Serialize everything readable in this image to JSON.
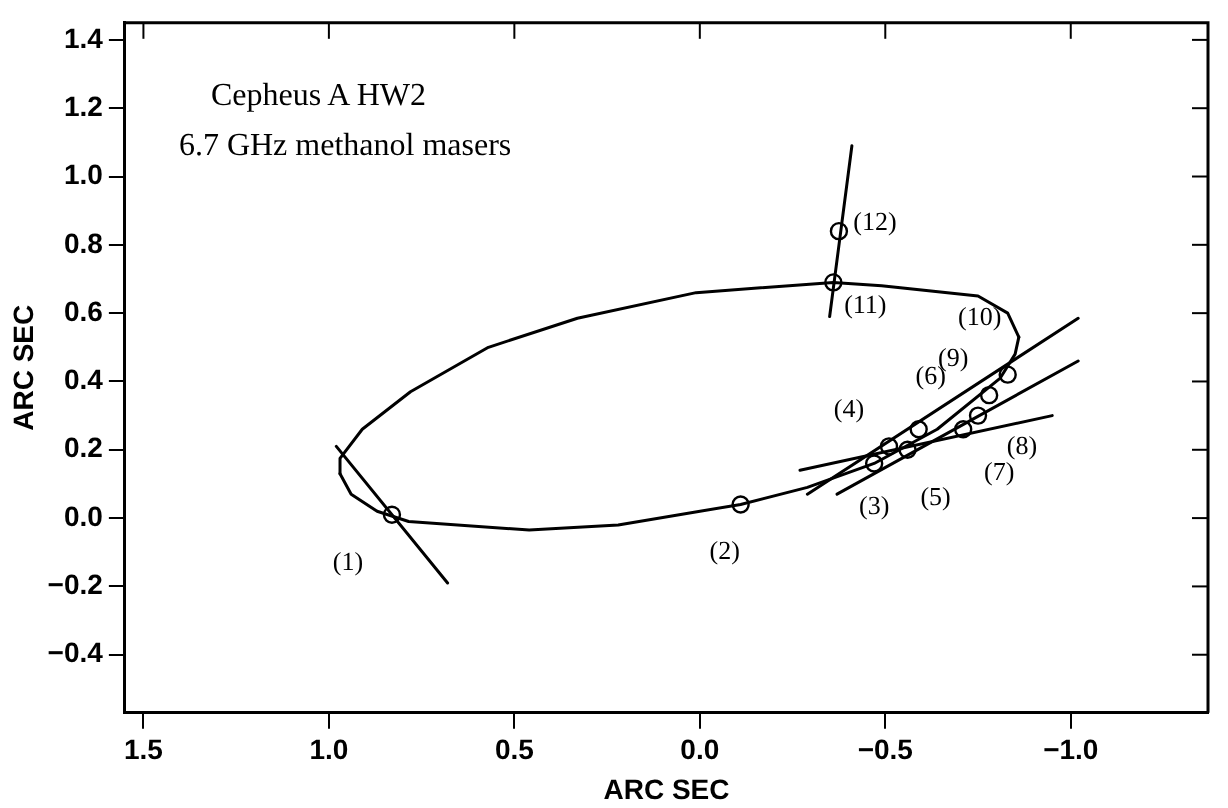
{
  "chart_data": {
    "type": "scatter",
    "title": "Cepheus A HW2",
    "subtitle": "6.7 GHz methanol masers",
    "xlabel": "ARC SEC",
    "ylabel": "ARC SEC",
    "xlim": [
      1.55,
      -1.37
    ],
    "ylim": [
      -0.57,
      1.45
    ],
    "xticks": [
      {
        "value": 1.5,
        "label": "1.5"
      },
      {
        "value": 1,
        "label": "1.0"
      },
      {
        "value": 0.5,
        "label": "0.5"
      },
      {
        "value": 0,
        "label": "0.0"
      },
      {
        "value": -0.5,
        "label": "−0.5"
      },
      {
        "value": -1,
        "label": "−1.0"
      }
    ],
    "yticks": [
      {
        "value": -0.4,
        "label": "−0.4"
      },
      {
        "value": -0.2,
        "label": "−0.2"
      },
      {
        "value": 0,
        "label": "0.0"
      },
      {
        "value": 0.2,
        "label": "0.2"
      },
      {
        "value": 0.4,
        "label": "0.4"
      },
      {
        "value": 0.6,
        "label": "0.6"
      },
      {
        "value": 0.8,
        "label": "0.8"
      },
      {
        "value": 1,
        "label": "1.0"
      },
      {
        "value": 1.2,
        "label": "1.2"
      },
      {
        "value": 1.4,
        "label": "1.4"
      }
    ],
    "grid": false,
    "legend": false,
    "marker": "circle",
    "series": [
      {
        "type": "scatter",
        "color": "#000000",
        "x": [
          0.83,
          -0.11,
          -0.47,
          -0.51,
          -0.56,
          -0.59,
          -0.71,
          -0.75,
          -0.78,
          -0.83,
          -0.36,
          -0.375
        ],
        "values": [
          0.01,
          0.04,
          0.16,
          0.21,
          0.2,
          0.26,
          0.26,
          0.3,
          0.36,
          0.42,
          0.69,
          0.84
        ]
      },
      {
        "type": "line",
        "color": "#000000",
        "marker": "none",
        "x": [
          0.97,
          0.94,
          0.87,
          0.785,
          0.46,
          0.22,
          -0.11,
          -0.29,
          -0.47,
          -0.64,
          -0.81,
          -0.85,
          -0.86
        ],
        "values": [
          0.13,
          0.07,
          0.02,
          -0.01,
          -0.035,
          -0.02,
          0.04,
          0.09,
          0.16,
          0.26,
          0.41,
          0.48,
          0.53
        ]
      },
      {
        "type": "line",
        "color": "#000000",
        "marker": "none",
        "x": [
          -0.86,
          -0.83,
          -0.75,
          -0.49,
          -0.36,
          0.01,
          0.33,
          0.57,
          0.78,
          0.91,
          0.97,
          0.97
        ],
        "values": [
          0.53,
          0.6,
          0.65,
          0.68,
          0.69,
          0.66,
          0.585,
          0.5,
          0.37,
          0.26,
          0.175,
          0.13
        ]
      },
      {
        "type": "line",
        "color": "#000000",
        "marker": "none",
        "x": [
          0.98,
          0.68
        ],
        "values": [
          0.21,
          -0.19
        ]
      },
      {
        "type": "line",
        "color": "#000000",
        "marker": "none",
        "x": [
          -0.41,
          -0.35
        ],
        "values": [
          1.09,
          0.59
        ]
      },
      {
        "type": "line",
        "color": "#000000",
        "marker": "none",
        "x": [
          -0.29,
          -1.02
        ],
        "values": [
          0.07,
          0.585
        ]
      },
      {
        "type": "line",
        "color": "#000000",
        "marker": "none",
        "x": [
          -0.37,
          -1.02
        ],
        "values": [
          0.07,
          0.46
        ]
      },
      {
        "type": "line",
        "color": "#000000",
        "marker": "none",
        "x": [
          -0.27,
          -0.95
        ],
        "values": [
          0.14,
          0.3
        ]
      }
    ],
    "annotations": [
      {
        "text": "(1)",
        "x": 0.83,
        "y": 0.01
      },
      {
        "text": "(2)",
        "x": -0.11,
        "y": 0.04
      },
      {
        "text": "(3)",
        "x": -0.47,
        "y": 0.16
      },
      {
        "text": "(4)",
        "x": -0.51,
        "y": 0.21
      },
      {
        "text": "(5)",
        "x": -0.56,
        "y": 0.2
      },
      {
        "text": "(6)",
        "x": -0.59,
        "y": 0.26
      },
      {
        "text": "(7)",
        "x": -0.71,
        "y": 0.26
      },
      {
        "text": "(8)",
        "x": -0.75,
        "y": 0.3
      },
      {
        "text": "(9)",
        "x": -0.78,
        "y": 0.36
      },
      {
        "text": "(10)",
        "x": -0.83,
        "y": 0.42
      },
      {
        "text": "(11)",
        "x": -0.36,
        "y": 0.69
      },
      {
        "text": "(12)",
        "x": -0.375,
        "y": 0.84
      }
    ]
  }
}
